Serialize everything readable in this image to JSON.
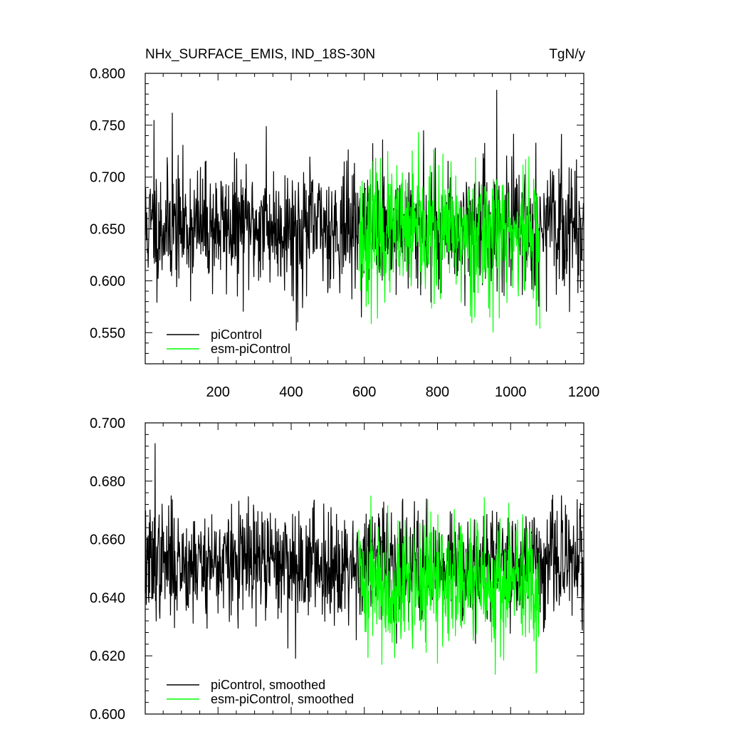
{
  "chart_data": [
    {
      "type": "line",
      "title": "NHx_SURFACE_EMIS, IND_18S-30N",
      "units": "TgN/y",
      "xlabel": "",
      "ylabel": "",
      "xlim": [
        1,
        1200
      ],
      "ylim": [
        0.52,
        0.8
      ],
      "xticks": [
        200,
        400,
        600,
        800,
        1000,
        1200
      ],
      "xtick_labels": [
        "200",
        "400",
        "600",
        "800",
        "1000",
        "1200"
      ],
      "yticks": [
        0.55,
        0.6,
        0.65,
        0.7,
        0.75,
        0.8
      ],
      "ytick_labels": [
        "0.550",
        "0.600",
        "0.650",
        "0.700",
        "0.750",
        "0.800"
      ],
      "grid": false,
      "legend_position": "bottom-left",
      "series": [
        {
          "name": "piControl",
          "color": "#000000",
          "x_start": 1,
          "x_end": 1200,
          "mean": 0.652,
          "std": 0.029,
          "values_note": "",
          "seed": 11,
          "spikes": [
            [
              25,
              0.755
            ],
            [
              75,
              0.762
            ],
            [
              332,
              0.749
            ],
            [
              414,
              0.552
            ],
            [
              418,
              0.56
            ],
            [
              762,
              0.745
            ],
            [
              962,
              0.784
            ],
            [
              1077,
              0.575
            ]
          ]
        },
        {
          "name": "esm-piControl",
          "color": "#00ff00",
          "x_start": 585,
          "x_end": 1080,
          "mean": 0.645,
          "std": 0.032,
          "values_note": "",
          "seed": 23,
          "spikes": [
            [
              904,
              0.719
            ],
            [
              1050,
              0.72
            ],
            [
              1080,
              0.554
            ]
          ]
        }
      ]
    },
    {
      "type": "line",
      "title": "",
      "xlabel": "",
      "ylabel": "",
      "xlim": [
        1,
        1200
      ],
      "ylim": [
        0.6,
        0.7
      ],
      "xticks": [
        200,
        400,
        600,
        800,
        1000,
        1200
      ],
      "xtick_labels": [],
      "yticks": [
        0.6,
        0.62,
        0.64,
        0.66,
        0.68,
        0.7
      ],
      "ytick_labels": [
        "0.600",
        "0.620",
        "0.640",
        "0.660",
        "0.680",
        "0.700"
      ],
      "grid": false,
      "legend_position": "bottom-left",
      "series": [
        {
          "name": "piControl, smoothed",
          "color": "#000000",
          "x_start": 1,
          "x_end": 1200,
          "mean": 0.652,
          "std": 0.0095,
          "values_note": "",
          "seed": 37,
          "spikes": [
            [
              28,
              0.693
            ],
            [
              20,
              0.641
            ],
            [
              412,
              0.619
            ],
            [
              304,
              0.63
            ]
          ]
        },
        {
          "name": "esm-piControl, smoothed",
          "color": "#00ff00",
          "x_start": 585,
          "x_end": 1080,
          "mean": 0.645,
          "std": 0.011,
          "values_note": "",
          "seed": 41,
          "spikes": [
            [
              618,
              0.675
            ],
            [
              1070,
              0.614
            ]
          ]
        }
      ]
    }
  ]
}
